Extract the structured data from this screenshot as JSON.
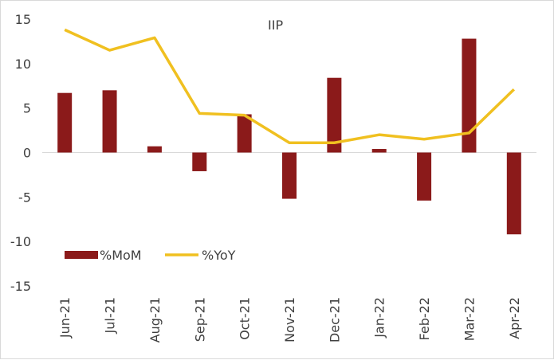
{
  "chart_data": {
    "type": "bar+line",
    "title": "IIP",
    "categories": [
      "Jun-21",
      "Jul-21",
      "Aug-21",
      "Sep-21",
      "Oct-21",
      "Nov-21",
      "Dec-21",
      "Jan-22",
      "Feb-22",
      "Mar-22",
      "Apr-22"
    ],
    "series": [
      {
        "name": "%MoM",
        "type": "bar",
        "color": "#8b1a1a",
        "values": [
          6.7,
          7.0,
          0.7,
          -2.1,
          4.3,
          -5.2,
          8.4,
          0.4,
          -5.4,
          12.8,
          -9.2
        ]
      },
      {
        "name": "%YoY",
        "type": "line",
        "color": "#f0c020",
        "values": [
          13.8,
          11.5,
          12.9,
          4.4,
          4.2,
          1.1,
          1.1,
          2.0,
          1.5,
          2.2,
          7.1
        ]
      }
    ],
    "ylim": [
      -15,
      15
    ],
    "yticks": [
      15,
      10,
      5,
      0,
      -5,
      -10,
      -15
    ],
    "xlabel": "",
    "ylabel": "",
    "grid": false,
    "legend_position": "bottom-left"
  }
}
